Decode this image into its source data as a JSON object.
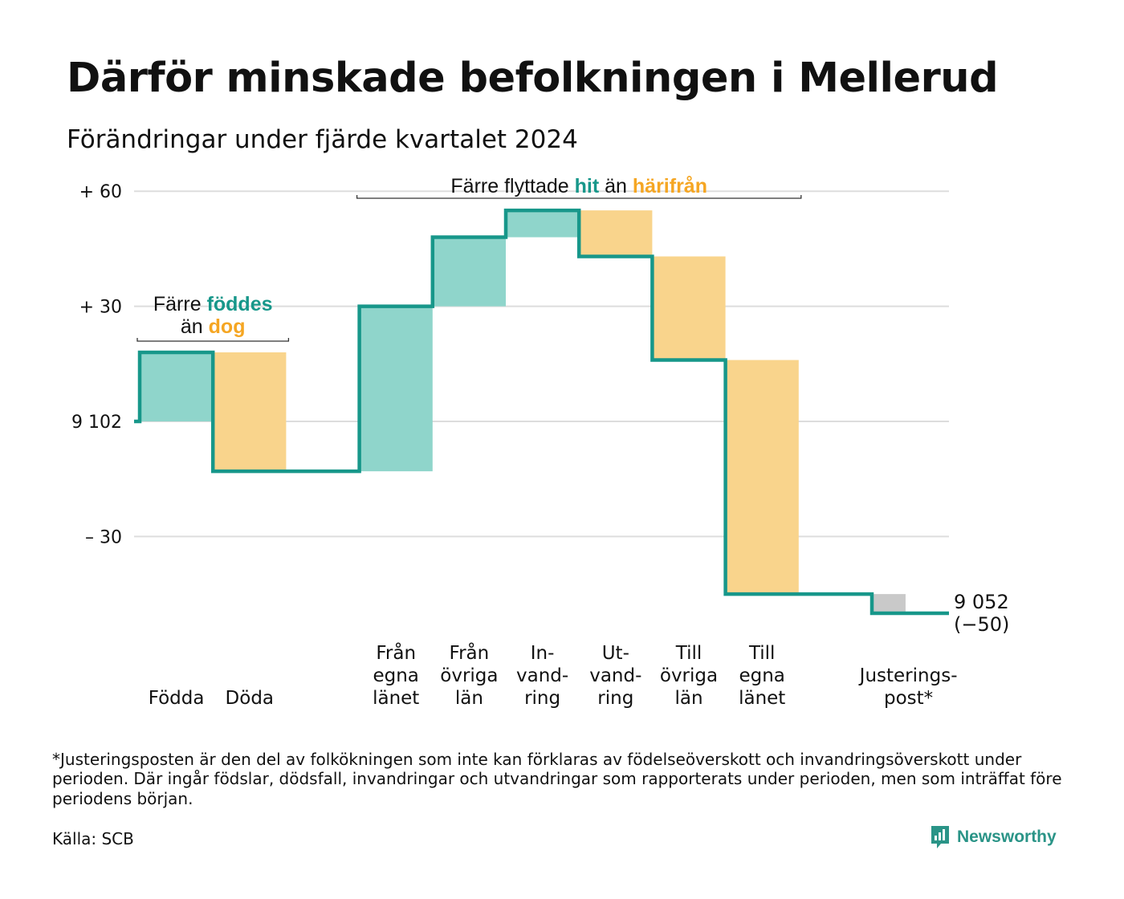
{
  "title": "Därför minskade befolkningen i Mellerud",
  "subtitle": "Förändringar under fjärde kvartalet 2024",
  "footnote": "*Justeringsposten är den del av folkökningen som inte kan förklaras av födelseöverskott och invandringsöverskott under perioden. Där ingår födslar, dödsfall, invandringar och utvandringar som rapporterats under perioden, men som inträffat före periodens början.",
  "source": "Källa: SCB",
  "brand": {
    "name": "Newsworthy",
    "icon": "newsworthy-logo-icon"
  },
  "colors": {
    "line": "#17978a",
    "increase": "#8fd5cb",
    "decrease": "#f9d48c",
    "adjustment": "#c9c9c9",
    "grid": "#dddddd",
    "accent_in": "#17978a",
    "accent_out": "#f5a623"
  },
  "chart_data": {
    "type": "waterfall",
    "start_value": 9102,
    "end_value": 9052,
    "change": -50,
    "y_axis": {
      "ticks": [
        {
          "value": 60,
          "label": "+ 60"
        },
        {
          "value": 30,
          "label": "+ 30"
        },
        {
          "value": 0,
          "label": "9 102"
        },
        {
          "value": -30,
          "label": "– 30"
        }
      ],
      "ylim": [
        -56,
        64
      ]
    },
    "steps": [
      {
        "lines": [
          "Födda"
        ],
        "value": 18,
        "kind": "increase"
      },
      {
        "lines": [
          "Döda"
        ],
        "value": -31,
        "kind": "decrease"
      },
      {
        "lines": [
          ""
        ],
        "value": 0,
        "kind": "gap"
      },
      {
        "lines": [
          "Från",
          "egna",
          "länet"
        ],
        "value": 43,
        "kind": "increase"
      },
      {
        "lines": [
          "Från",
          "övriga",
          "län"
        ],
        "value": 18,
        "kind": "increase"
      },
      {
        "lines": [
          "In-",
          "vand-",
          "ring"
        ],
        "value": 7,
        "kind": "increase"
      },
      {
        "lines": [
          "Ut-",
          "vand-",
          "ring"
        ],
        "value": -12,
        "kind": "decrease"
      },
      {
        "lines": [
          "Till",
          "övriga",
          "län"
        ],
        "value": -27,
        "kind": "decrease"
      },
      {
        "lines": [
          "Till",
          "egna",
          "länet"
        ],
        "value": -61,
        "kind": "decrease"
      },
      {
        "lines": [
          ""
        ],
        "value": 0,
        "kind": "gap"
      },
      {
        "lines": [
          "Justerings-",
          "post*"
        ],
        "value": -5,
        "kind": "adjustment"
      }
    ],
    "end_label": [
      "9 052",
      "(−50)"
    ],
    "annotations": [
      {
        "from_step": 0,
        "to_step": 1,
        "lines": [
          [
            {
              "text": "Färre ",
              "role": "plain"
            },
            {
              "text": "föddes",
              "role": "in"
            }
          ],
          [
            {
              "text": "än ",
              "role": "plain"
            },
            {
              "text": "dog",
              "role": "out"
            }
          ]
        ]
      },
      {
        "from_step": 3,
        "to_step": 8,
        "lines": [
          [
            {
              "text": "Färre flyttade ",
              "role": "plain"
            },
            {
              "text": "hit",
              "role": "in"
            },
            {
              "text": "  än ",
              "role": "plain"
            },
            {
              "text": "härifrån",
              "role": "out"
            }
          ]
        ]
      }
    ]
  }
}
